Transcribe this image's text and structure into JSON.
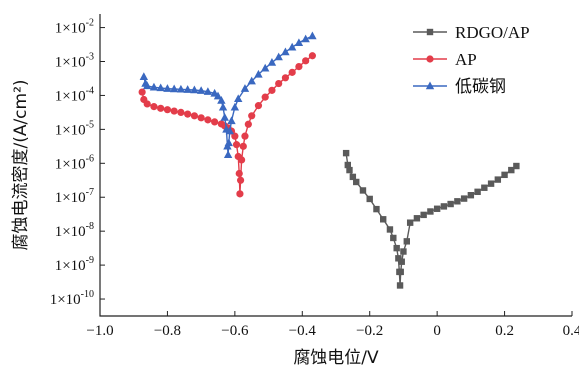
{
  "chart_data": {
    "type": "scatter",
    "title": "",
    "xlabel": "腐蚀电位/V",
    "ylabel": "腐蚀电流密度/(A/cm²)",
    "xlim": [
      -1.0,
      0.4
    ],
    "xticks": [
      -1.0,
      -0.8,
      -0.6,
      -0.4,
      -0.2,
      0,
      0.2,
      0.4
    ],
    "xtick_labels": [
      "−1.0",
      "−0.8",
      "−0.6",
      "−0.4",
      "−0.2",
      "0",
      "0.2",
      "0.4"
    ],
    "y_scale": "log",
    "ylim_exponent": [
      -10.5,
      -1.6
    ],
    "yticks_exponent": [
      -10,
      -9,
      -8,
      -7,
      -6,
      -5,
      -4,
      -3,
      -2
    ],
    "ytick_mantissa": "1×10",
    "grid": false,
    "legend_position": "top-right",
    "series": [
      {
        "name": "RDGO/AP",
        "color": "#5a5a5a",
        "marker": "square",
        "log_points": [
          [
            -0.27,
            -5.7
          ],
          [
            -0.265,
            -6.05
          ],
          [
            -0.26,
            -6.2
          ],
          [
            -0.25,
            -6.4
          ],
          [
            -0.24,
            -6.55
          ],
          [
            -0.22,
            -6.8
          ],
          [
            -0.2,
            -7.05
          ],
          [
            -0.18,
            -7.35
          ],
          [
            -0.16,
            -7.65
          ],
          [
            -0.14,
            -7.95
          ],
          [
            -0.13,
            -8.2
          ],
          [
            -0.12,
            -8.5
          ],
          [
            -0.115,
            -8.8
          ],
          [
            -0.112,
            -9.2
          ],
          [
            -0.11,
            -9.6
          ],
          [
            -0.108,
            -9.2
          ],
          [
            -0.105,
            -8.9
          ],
          [
            -0.1,
            -8.6
          ],
          [
            -0.09,
            -8.3
          ],
          [
            -0.08,
            -7.75
          ],
          [
            -0.06,
            -7.62
          ],
          [
            -0.04,
            -7.52
          ],
          [
            -0.02,
            -7.42
          ],
          [
            0.0,
            -7.34
          ],
          [
            0.02,
            -7.27
          ],
          [
            0.04,
            -7.2
          ],
          [
            0.06,
            -7.12
          ],
          [
            0.08,
            -7.04
          ],
          [
            0.1,
            -6.94
          ],
          [
            0.12,
            -6.84
          ],
          [
            0.14,
            -6.72
          ],
          [
            0.16,
            -6.6
          ],
          [
            0.18,
            -6.48
          ],
          [
            0.2,
            -6.34
          ],
          [
            0.22,
            -6.2
          ],
          [
            0.235,
            -6.08
          ]
        ]
      },
      {
        "name": "AP",
        "color": "#e33d4a",
        "marker": "circle",
        "log_points": [
          [
            -0.875,
            -3.9
          ],
          [
            -0.87,
            -4.12
          ],
          [
            -0.86,
            -4.25
          ],
          [
            -0.84,
            -4.33
          ],
          [
            -0.82,
            -4.38
          ],
          [
            -0.8,
            -4.42
          ],
          [
            -0.78,
            -4.46
          ],
          [
            -0.76,
            -4.5
          ],
          [
            -0.74,
            -4.55
          ],
          [
            -0.72,
            -4.6
          ],
          [
            -0.7,
            -4.66
          ],
          [
            -0.68,
            -4.72
          ],
          [
            -0.66,
            -4.78
          ],
          [
            -0.64,
            -4.84
          ],
          [
            -0.63,
            -4.9
          ],
          [
            -0.62,
            -4.96
          ],
          [
            -0.61,
            -5.05
          ],
          [
            -0.6,
            -5.2
          ],
          [
            -0.595,
            -5.45
          ],
          [
            -0.59,
            -5.8
          ],
          [
            -0.587,
            -6.3
          ],
          [
            -0.585,
            -6.9
          ],
          [
            -0.583,
            -6.5
          ],
          [
            -0.58,
            -5.9
          ],
          [
            -0.575,
            -5.5
          ],
          [
            -0.57,
            -5.2
          ],
          [
            -0.56,
            -4.85
          ],
          [
            -0.55,
            -4.6
          ],
          [
            -0.53,
            -4.3
          ],
          [
            -0.51,
            -4.05
          ],
          [
            -0.49,
            -3.85
          ],
          [
            -0.47,
            -3.65
          ],
          [
            -0.45,
            -3.48
          ],
          [
            -0.43,
            -3.32
          ],
          [
            -0.41,
            -3.15
          ],
          [
            -0.39,
            -2.98
          ],
          [
            -0.37,
            -2.83
          ]
        ]
      },
      {
        "name": "低碳钢",
        "color": "#3a68c0",
        "marker": "triangle",
        "log_points": [
          [
            -0.87,
            -3.45
          ],
          [
            -0.865,
            -3.65
          ],
          [
            -0.86,
            -3.72
          ],
          [
            -0.84,
            -3.76
          ],
          [
            -0.82,
            -3.78
          ],
          [
            -0.8,
            -3.8
          ],
          [
            -0.78,
            -3.81
          ],
          [
            -0.76,
            -3.82
          ],
          [
            -0.74,
            -3.83
          ],
          [
            -0.72,
            -3.84
          ],
          [
            -0.7,
            -3.86
          ],
          [
            -0.68,
            -3.89
          ],
          [
            -0.66,
            -3.94
          ],
          [
            -0.65,
            -4.02
          ],
          [
            -0.64,
            -4.15
          ],
          [
            -0.635,
            -4.35
          ],
          [
            -0.63,
            -4.65
          ],
          [
            -0.625,
            -5.0
          ],
          [
            -0.622,
            -5.5
          ],
          [
            -0.62,
            -5.75
          ],
          [
            -0.618,
            -5.4
          ],
          [
            -0.615,
            -5.05
          ],
          [
            -0.61,
            -4.75
          ],
          [
            -0.6,
            -4.35
          ],
          [
            -0.59,
            -4.1
          ],
          [
            -0.57,
            -3.8
          ],
          [
            -0.55,
            -3.58
          ],
          [
            -0.53,
            -3.38
          ],
          [
            -0.51,
            -3.2
          ],
          [
            -0.49,
            -3.03
          ],
          [
            -0.47,
            -2.87
          ],
          [
            -0.45,
            -2.72
          ],
          [
            -0.43,
            -2.58
          ],
          [
            -0.41,
            -2.45
          ],
          [
            -0.39,
            -2.34
          ],
          [
            -0.37,
            -2.25
          ]
        ]
      }
    ]
  }
}
